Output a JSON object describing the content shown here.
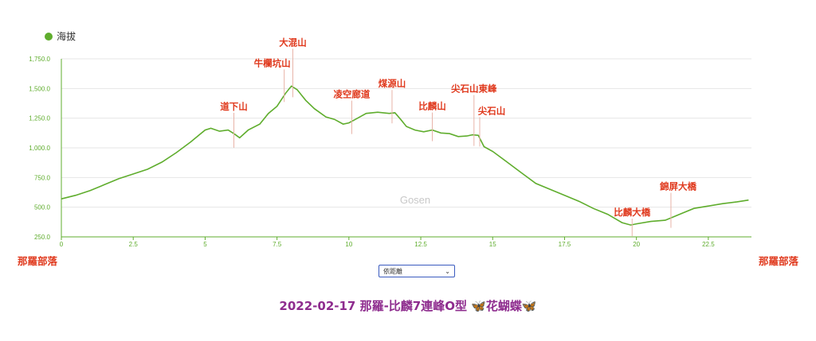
{
  "legend": {
    "label": "海拔",
    "color": "#5fad2d"
  },
  "route": {
    "start": "那羅部落",
    "end": "那羅部落"
  },
  "xtype_select": {
    "value": "依距離",
    "arrow": "⌄"
  },
  "title": "2022-02-17 那羅-比麟7連峰O型 🦋花蝴蝶🦋",
  "watermark": "Gosen",
  "colors": {
    "line": "#5fad2d",
    "label": "#e03a1e",
    "axis": "#5fad2d",
    "grid": "#e6e6e6",
    "title": "#8e2c8e"
  },
  "chart_data": {
    "type": "line",
    "xlim": [
      0,
      24
    ],
    "ylim": [
      250,
      1750
    ],
    "yticks": [
      250,
      500,
      750,
      1000,
      1250,
      1500,
      1750
    ],
    "ytick_labels": [
      "250.0",
      "500.0",
      "750.0",
      "1,000.0",
      "1,250.0",
      "1,500.0",
      "1,750.0"
    ],
    "xticks": [
      0,
      2.5,
      5,
      7.5,
      10,
      12.5,
      15,
      17.5,
      20,
      22.5
    ],
    "xtick_labels": [
      "0",
      "2.5",
      "5",
      "7.5",
      "10",
      "12.5",
      "15",
      "17.5",
      "20",
      "22.5"
    ],
    "grid": "horizontal",
    "series": [
      {
        "name": "海拔",
        "x": [
          0,
          0.5,
          1,
          1.5,
          2,
          2.5,
          3,
          3.5,
          4,
          4.5,
          5,
          5.2,
          5.5,
          5.8,
          6,
          6.2,
          6.5,
          6.9,
          7.2,
          7.5,
          7.8,
          8,
          8.2,
          8.5,
          8.8,
          9.2,
          9.5,
          9.8,
          10,
          10.3,
          10.6,
          11,
          11.4,
          11.6,
          11.8,
          12,
          12.3,
          12.6,
          12.9,
          13.2,
          13.5,
          13.8,
          14.1,
          14.3,
          14.5,
          14.7,
          15,
          15.5,
          16,
          16.5,
          17,
          17.5,
          18,
          18.5,
          19,
          19.5,
          19.8,
          20,
          20.5,
          21,
          21.3,
          21.6,
          22,
          22.5,
          23,
          23.5,
          23.9
        ],
        "y": [
          570,
          600,
          640,
          690,
          740,
          780,
          820,
          880,
          960,
          1050,
          1150,
          1165,
          1140,
          1150,
          1120,
          1085,
          1150,
          1200,
          1290,
          1350,
          1460,
          1520,
          1490,
          1400,
          1330,
          1260,
          1240,
          1200,
          1210,
          1250,
          1290,
          1300,
          1290,
          1295,
          1240,
          1180,
          1150,
          1135,
          1150,
          1125,
          1120,
          1095,
          1100,
          1110,
          1105,
          1010,
          970,
          880,
          790,
          700,
          650,
          600,
          550,
          490,
          440,
          370,
          350,
          360,
          380,
          390,
          420,
          450,
          490,
          510,
          530,
          545,
          560
        ]
      }
    ],
    "annotations": [
      {
        "text": "那羅部落",
        "x": 0
      },
      {
        "text": "道下山",
        "x": 6.0,
        "y": 1095
      },
      {
        "text": "牛欄坑山",
        "x": 7.75,
        "y": 1480
      },
      {
        "text": "大混山",
        "x": 8.05,
        "y": 1520
      },
      {
        "text": "凌空廊道",
        "x": 10.1,
        "y": 1210
      },
      {
        "text": "煤源山",
        "x": 11.5,
        "y": 1300
      },
      {
        "text": "比麟山",
        "x": 12.9,
        "y": 1150
      },
      {
        "text": "尖石山東峰",
        "x": 14.35,
        "y": 1110
      },
      {
        "text": "尖石山",
        "x": 14.55,
        "y": 1105
      },
      {
        "text": "比麟大橋",
        "x": 19.85,
        "y": 350
      },
      {
        "text": "錦屏大橋",
        "x": 21.2,
        "y": 420
      },
      {
        "text": "那羅部落",
        "x": 23.9
      }
    ]
  }
}
